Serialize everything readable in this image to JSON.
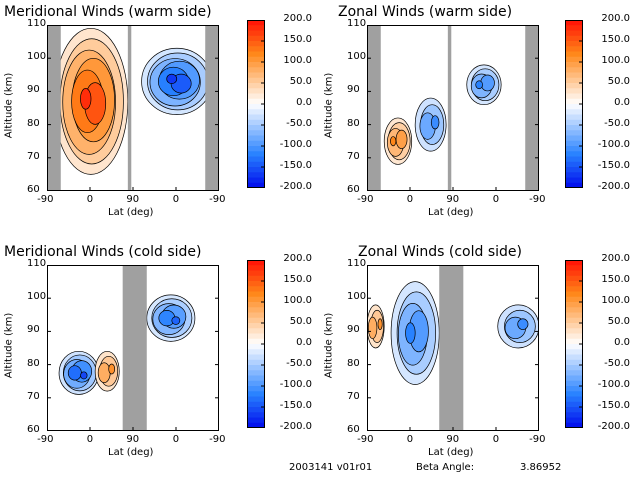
{
  "chart_data": [
    {
      "type": "heatmap",
      "title": "Meridional Winds (warm side)",
      "xlabel": "Lat (deg)",
      "ylabel": "Altitude (km)",
      "xticks": [
        "-90",
        "0",
        "90",
        "0",
        "-90"
      ],
      "yticks": [
        "60",
        "70",
        "80",
        "90",
        "100",
        "110"
      ],
      "ylim": [
        60,
        110
      ],
      "colorbar": {
        "ticks": [
          "200.0",
          "150.0",
          "100.0",
          "50.0",
          "0.0",
          "-50.0",
          "-100.0",
          "-150.0",
          "-200.0"
        ],
        "range": [
          -200,
          200
        ]
      },
      "features": [
        {
          "kind": "positive",
          "x0": 0.04,
          "x1": 0.47,
          "y0": 65,
          "y1": 109,
          "peak": 180
        },
        {
          "kind": "negative",
          "x0": 0.55,
          "x1": 0.96,
          "y0": 83,
          "y1": 103,
          "peak": -170
        }
      ],
      "gaps": [
        [
          0.0,
          0.08
        ],
        [
          0.47,
          0.49
        ],
        [
          0.92,
          1.0
        ]
      ]
    },
    {
      "type": "heatmap",
      "title": "Zonal Winds (warm side)",
      "xlabel": "Lat (deg)",
      "ylabel": "Altitude (km)",
      "xticks": [
        "-90",
        "0",
        "90",
        "0",
        "-90"
      ],
      "yticks": [
        "60",
        "70",
        "80",
        "90",
        "100",
        "110"
      ],
      "ylim": [
        60,
        110
      ],
      "colorbar": {
        "ticks": [
          "200.0",
          "150.0",
          "100.0",
          "50.0",
          "0.0",
          "-50.0",
          "-100.0",
          "-150.0",
          "-200.0"
        ],
        "range": [
          -200,
          200
        ]
      },
      "features": [
        {
          "kind": "positive",
          "x0": 0.1,
          "x1": 0.26,
          "y0": 68,
          "y1": 82,
          "peak": 120
        },
        {
          "kind": "negative",
          "x0": 0.28,
          "x1": 0.46,
          "y0": 72,
          "y1": 88,
          "peak": -110
        },
        {
          "kind": "negative",
          "x0": 0.58,
          "x1": 0.78,
          "y0": 86,
          "y1": 98,
          "peak": -120
        }
      ],
      "gaps": [
        [
          0.0,
          0.08
        ],
        [
          0.47,
          0.49
        ],
        [
          0.92,
          1.0
        ]
      ]
    },
    {
      "type": "heatmap",
      "title": "Meridional Winds (cold side)",
      "xlabel": "Lat (deg)",
      "ylabel": "Altitude (km)",
      "xticks": [
        "-90",
        "0",
        "90",
        "0",
        "-90"
      ],
      "yticks": [
        "60",
        "70",
        "80",
        "90",
        "100",
        "110"
      ],
      "ylim": [
        60,
        110
      ],
      "colorbar": {
        "ticks": [
          "200.0",
          "150.0",
          "100.0",
          "50.0",
          "0.0",
          "-50.0",
          "-100.0",
          "-150.0",
          "-200.0"
        ],
        "range": [
          -200,
          200
        ]
      },
      "features": [
        {
          "kind": "negative",
          "x0": 0.07,
          "x1": 0.3,
          "y0": 71,
          "y1": 84,
          "peak": -160
        },
        {
          "kind": "positive",
          "x0": 0.28,
          "x1": 0.42,
          "y0": 72,
          "y1": 84,
          "peak": 110
        },
        {
          "kind": "negative",
          "x0": 0.58,
          "x1": 0.86,
          "y0": 87,
          "y1": 101,
          "peak": -140
        }
      ],
      "gaps": [
        [
          0.44,
          0.58
        ]
      ]
    },
    {
      "type": "heatmap",
      "title": "Zonal Winds (cold side)",
      "xlabel": "Lat (deg)",
      "ylabel": "Altitude (km)",
      "xticks": [
        "-90",
        "0",
        "90",
        "0",
        "-90"
      ],
      "yticks": [
        "60",
        "70",
        "80",
        "90",
        "100",
        "110"
      ],
      "ylim": [
        60,
        110
      ],
      "colorbar": {
        "ticks": [
          "200.0",
          "150.0",
          "100.0",
          "50.0",
          "0.0",
          "-50.0",
          "-100.0",
          "-150.0",
          "-200.0"
        ],
        "range": [
          -200,
          200
        ]
      },
      "features": [
        {
          "kind": "positive",
          "x0": 0.0,
          "x1": 0.1,
          "y0": 85,
          "y1": 98,
          "peak": 110
        },
        {
          "kind": "negative",
          "x0": 0.14,
          "x1": 0.42,
          "y0": 74,
          "y1": 105,
          "peak": -120
        },
        {
          "kind": "negative",
          "x0": 0.76,
          "x1": 1.0,
          "y0": 85,
          "y1": 98,
          "peak": -110
        }
      ],
      "gaps": [
        [
          0.42,
          0.56
        ]
      ]
    }
  ],
  "footer": {
    "date_version": "2003141 v01r01",
    "beta_label": "Beta Angle:",
    "beta_value": "3.86952"
  },
  "colors": {
    "gap": "#a0a0a0"
  }
}
